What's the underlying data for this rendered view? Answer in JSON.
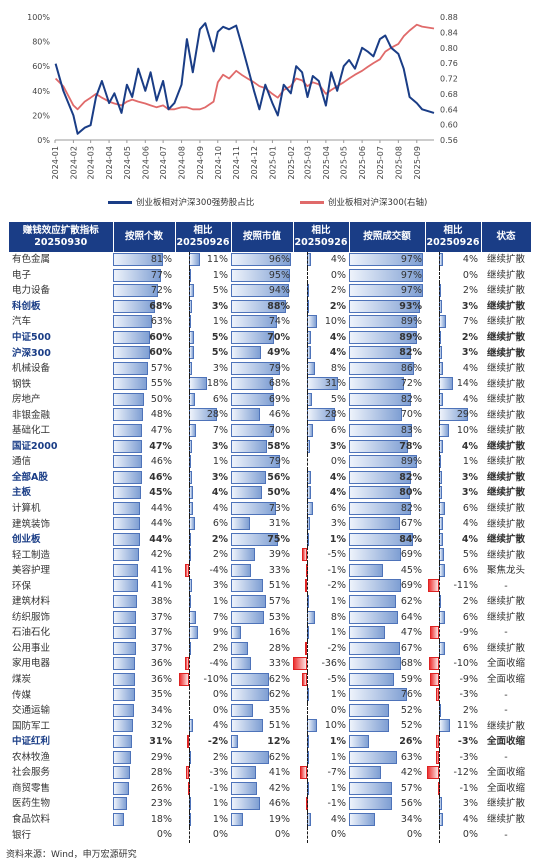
{
  "chart_data": [
    {
      "type": "line",
      "x_ticks": [
        "2024-01",
        "2024-02",
        "2024-03",
        "2024-04",
        "2024-05",
        "2024-06",
        "2024-07",
        "2024-08",
        "2024-09",
        "2024-10",
        "2024-11",
        "2024-12",
        "2025-01",
        "2025-02",
        "2025-03",
        "2025-04",
        "2025-05",
        "2025-06",
        "2025-07",
        "2025-08",
        "2025-09"
      ],
      "y_left_ticks": [
        "0%",
        "20%",
        "40%",
        "60%",
        "80%",
        "100%"
      ],
      "y_left_range": [
        0,
        100
      ],
      "y_right_ticks": [
        "0.56",
        "0.60",
        "0.64",
        "0.68",
        "0.72",
        "0.76",
        "0.80",
        "0.84",
        "0.88"
      ],
      "y_right_range": [
        0.56,
        0.88
      ],
      "series": [
        {
          "name": "创业板相对沪深300强势股占比",
          "axis": "left",
          "color": "#1a3d86",
          "x": [
            "2024-01-02",
            "2024-01-15",
            "2024-02-01",
            "2024-02-08",
            "2024-02-20",
            "2024-03-01",
            "2024-03-10",
            "2024-03-20",
            "2024-04-01",
            "2024-04-10",
            "2024-04-22",
            "2024-05-01",
            "2024-05-10",
            "2024-05-20",
            "2024-06-01",
            "2024-06-10",
            "2024-06-20",
            "2024-07-01",
            "2024-07-10",
            "2024-07-20",
            "2024-08-01",
            "2024-08-10",
            "2024-08-20",
            "2024-09-01",
            "2024-09-10",
            "2024-09-24",
            "2024-10-01",
            "2024-10-10",
            "2024-10-20",
            "2024-11-01",
            "2024-11-10",
            "2024-11-20",
            "2024-12-01",
            "2024-12-10",
            "2024-12-20",
            "2025-01-01",
            "2025-01-10",
            "2025-01-20",
            "2025-02-01",
            "2025-02-10",
            "2025-02-20",
            "2025-03-01",
            "2025-03-10",
            "2025-03-20",
            "2025-04-01",
            "2025-04-10",
            "2025-04-20",
            "2025-05-01",
            "2025-05-10",
            "2025-05-20",
            "2025-06-01",
            "2025-06-10",
            "2025-06-20",
            "2025-07-01",
            "2025-07-10",
            "2025-07-20",
            "2025-08-01",
            "2025-08-10",
            "2025-08-20",
            "2025-09-01",
            "2025-09-10",
            "2025-09-30"
          ],
          "values": [
            62,
            40,
            20,
            5,
            10,
            12,
            35,
            48,
            30,
            38,
            22,
            45,
            35,
            58,
            40,
            55,
            32,
            48,
            25,
            30,
            45,
            82,
            55,
            90,
            95,
            72,
            88,
            92,
            90,
            93,
            78,
            60,
            40,
            25,
            45,
            30,
            20,
            45,
            38,
            60,
            55,
            35,
            52,
            48,
            28,
            55,
            40,
            60,
            65,
            58,
            75,
            72,
            68,
            82,
            85,
            75,
            70,
            58,
            35,
            30,
            25,
            22
          ]
        },
        {
          "name": "创业板相对沪深300(右轴)",
          "axis": "right",
          "color": "#e06a6a",
          "x": [
            "2024-01-02",
            "2024-01-15",
            "2024-02-01",
            "2024-02-08",
            "2024-02-20",
            "2024-03-01",
            "2024-03-10",
            "2024-03-20",
            "2024-04-01",
            "2024-04-10",
            "2024-04-22",
            "2024-05-01",
            "2024-05-10",
            "2024-05-20",
            "2024-06-01",
            "2024-06-10",
            "2024-06-20",
            "2024-07-01",
            "2024-07-10",
            "2024-07-20",
            "2024-08-01",
            "2024-08-10",
            "2024-08-20",
            "2024-09-01",
            "2024-09-10",
            "2024-09-24",
            "2024-10-01",
            "2024-10-10",
            "2024-10-20",
            "2024-11-01",
            "2024-11-10",
            "2024-11-20",
            "2024-12-01",
            "2024-12-10",
            "2024-12-20",
            "2025-01-01",
            "2025-01-10",
            "2025-01-20",
            "2025-02-01",
            "2025-02-10",
            "2025-02-20",
            "2025-03-01",
            "2025-03-10",
            "2025-03-20",
            "2025-04-01",
            "2025-04-10",
            "2025-04-20",
            "2025-05-01",
            "2025-05-10",
            "2025-05-20",
            "2025-06-01",
            "2025-06-10",
            "2025-06-20",
            "2025-07-01",
            "2025-07-10",
            "2025-07-20",
            "2025-08-01",
            "2025-08-10",
            "2025-08-20",
            "2025-09-01",
            "2025-09-10",
            "2025-09-30"
          ],
          "values": [
            0.72,
            0.7,
            0.65,
            0.64,
            0.66,
            0.67,
            0.68,
            0.67,
            0.66,
            0.655,
            0.65,
            0.66,
            0.665,
            0.66,
            0.655,
            0.65,
            0.645,
            0.65,
            0.64,
            0.64,
            0.645,
            0.645,
            0.64,
            0.64,
            0.645,
            0.66,
            0.71,
            0.73,
            0.72,
            0.74,
            0.73,
            0.72,
            0.71,
            0.7,
            0.695,
            0.68,
            0.67,
            0.69,
            0.7,
            0.72,
            0.715,
            0.7,
            0.71,
            0.705,
            0.68,
            0.69,
            0.7,
            0.71,
            0.72,
            0.73,
            0.74,
            0.75,
            0.76,
            0.77,
            0.79,
            0.8,
            0.81,
            0.83,
            0.845,
            0.86,
            0.855,
            0.85
          ]
        }
      ]
    },
    {
      "type": "table",
      "columns": [
        "赚钱效应扩散指标 20250930",
        "按照个数",
        "相比 20250926",
        "按照市值",
        "相比 20250926",
        "按照成交额",
        "相比 20250926",
        "状态"
      ],
      "rows": [
        {
          "name": "有色金属",
          "bold": false,
          "c1": 81,
          "d1": 11,
          "c2": 96,
          "d2": 4,
          "c3": 97,
          "d3": 4,
          "status": "继续扩散"
        },
        {
          "name": "电子",
          "bold": false,
          "c1": 77,
          "d1": 1,
          "c2": 95,
          "d2": 0,
          "c3": 97,
          "d3": 0,
          "status": "继续扩散"
        },
        {
          "name": "电力设备",
          "bold": false,
          "c1": 72,
          "d1": 5,
          "c2": 94,
          "d2": 2,
          "c3": 97,
          "d3": 2,
          "status": "继续扩散"
        },
        {
          "name": "科创板",
          "bold": true,
          "c1": 68,
          "d1": 3,
          "c2": 88,
          "d2": 2,
          "c3": 93,
          "d3": 3,
          "status": "继续扩散"
        },
        {
          "name": "汽车",
          "bold": false,
          "c1": 63,
          "d1": 1,
          "c2": 74,
          "d2": 10,
          "c3": 89,
          "d3": 7,
          "status": "继续扩散"
        },
        {
          "name": "中证500",
          "bold": true,
          "c1": 60,
          "d1": 5,
          "c2": 70,
          "d2": 4,
          "c3": 89,
          "d3": 2,
          "status": "继续扩散"
        },
        {
          "name": "沪深300",
          "bold": true,
          "c1": 60,
          "d1": 5,
          "c2": 49,
          "d2": 4,
          "c3": 82,
          "d3": 3,
          "status": "继续扩散"
        },
        {
          "name": "机械设备",
          "bold": false,
          "c1": 57,
          "d1": 3,
          "c2": 79,
          "d2": 8,
          "c3": 86,
          "d3": 4,
          "status": "继续扩散"
        },
        {
          "name": "钢铁",
          "bold": false,
          "c1": 55,
          "d1": 18,
          "c2": 68,
          "d2": 31,
          "c3": 72,
          "d3": 14,
          "status": "继续扩散"
        },
        {
          "name": "房地产",
          "bold": false,
          "c1": 50,
          "d1": 6,
          "c2": 69,
          "d2": 5,
          "c3": 82,
          "d3": 4,
          "status": "继续扩散"
        },
        {
          "name": "非银金融",
          "bold": false,
          "c1": 48,
          "d1": 28,
          "c2": 46,
          "d2": 28,
          "c3": 70,
          "d3": 29,
          "status": "继续扩散"
        },
        {
          "name": "基础化工",
          "bold": false,
          "c1": 47,
          "d1": 7,
          "c2": 70,
          "d2": 6,
          "c3": 83,
          "d3": 10,
          "status": "继续扩散"
        },
        {
          "name": "国证2000",
          "bold": true,
          "c1": 47,
          "d1": 3,
          "c2": 58,
          "d2": 3,
          "c3": 78,
          "d3": 4,
          "status": "继续扩散"
        },
        {
          "name": "通信",
          "bold": false,
          "c1": 46,
          "d1": 1,
          "c2": 79,
          "d2": 0,
          "c3": 89,
          "d3": 1,
          "status": "继续扩散"
        },
        {
          "name": "全部A股",
          "bold": true,
          "c1": 46,
          "d1": 3,
          "c2": 56,
          "d2": 4,
          "c3": 82,
          "d3": 3,
          "status": "继续扩散"
        },
        {
          "name": "主板",
          "bold": true,
          "c1": 45,
          "d1": 4,
          "c2": 50,
          "d2": 4,
          "c3": 80,
          "d3": 3,
          "status": "继续扩散"
        },
        {
          "name": "计算机",
          "bold": false,
          "c1": 44,
          "d1": 4,
          "c2": 73,
          "d2": 6,
          "c3": 82,
          "d3": 6,
          "status": "继续扩散"
        },
        {
          "name": "建筑装饰",
          "bold": false,
          "c1": 44,
          "d1": 6,
          "c2": 31,
          "d2": 3,
          "c3": 67,
          "d3": 4,
          "status": "继续扩散"
        },
        {
          "name": "创业板",
          "bold": true,
          "c1": 44,
          "d1": 2,
          "c2": 75,
          "d2": 1,
          "c3": 84,
          "d3": 4,
          "status": "继续扩散"
        },
        {
          "name": "轻工制造",
          "bold": false,
          "c1": 42,
          "d1": 2,
          "c2": 39,
          "d2": -5,
          "c3": 69,
          "d3": 5,
          "status": "继续扩散"
        },
        {
          "name": "美容护理",
          "bold": false,
          "c1": 41,
          "d1": -4,
          "c2": 33,
          "d2": -1,
          "c3": 45,
          "d3": 6,
          "status": "聚焦龙头"
        },
        {
          "name": "环保",
          "bold": false,
          "c1": 41,
          "d1": 3,
          "c2": 51,
          "d2": -2,
          "c3": 69,
          "d3": -11,
          "status": "-"
        },
        {
          "name": "建筑材料",
          "bold": false,
          "c1": 38,
          "d1": 1,
          "c2": 57,
          "d2": 1,
          "c3": 62,
          "d3": 2,
          "status": "继续扩散"
        },
        {
          "name": "纺织服饰",
          "bold": false,
          "c1": 37,
          "d1": 7,
          "c2": 53,
          "d2": 8,
          "c3": 64,
          "d3": 6,
          "status": "继续扩散"
        },
        {
          "name": "石油石化",
          "bold": false,
          "c1": 37,
          "d1": 9,
          "c2": 16,
          "d2": 1,
          "c3": 47,
          "d3": -9,
          "status": "-"
        },
        {
          "name": "公用事业",
          "bold": false,
          "c1": 37,
          "d1": 2,
          "c2": 28,
          "d2": -2,
          "c3": 67,
          "d3": 6,
          "status": "继续扩散"
        },
        {
          "name": "家用电器",
          "bold": false,
          "c1": 36,
          "d1": -4,
          "c2": 33,
          "d2": -36,
          "c3": 68,
          "d3": -10,
          "status": "全面收缩"
        },
        {
          "name": "煤炭",
          "bold": false,
          "c1": 36,
          "d1": -10,
          "c2": 62,
          "d2": -5,
          "c3": 59,
          "d3": -9,
          "status": "全面收缩"
        },
        {
          "name": "传媒",
          "bold": false,
          "c1": 35,
          "d1": 0,
          "c2": 62,
          "d2": 1,
          "c3": 76,
          "d3": -3,
          "status": "-"
        },
        {
          "name": "交通运输",
          "bold": false,
          "c1": 34,
          "d1": 0,
          "c2": 35,
          "d2": 0,
          "c3": 52,
          "d3": 2,
          "status": "-"
        },
        {
          "name": "国防军工",
          "bold": false,
          "c1": 32,
          "d1": 4,
          "c2": 51,
          "d2": 10,
          "c3": 52,
          "d3": 11,
          "status": "继续扩散"
        },
        {
          "name": "中证红利",
          "bold": true,
          "c1": 31,
          "d1": -2,
          "c2": 12,
          "d2": 1,
          "c3": 26,
          "d3": -3,
          "status": "全面收缩"
        },
        {
          "name": "农林牧渔",
          "bold": false,
          "c1": 29,
          "d1": 2,
          "c2": 62,
          "d2": 1,
          "c3": 63,
          "d3": -3,
          "status": "-"
        },
        {
          "name": "社会服务",
          "bold": false,
          "c1": 28,
          "d1": -3,
          "c2": 41,
          "d2": -7,
          "c3": 42,
          "d3": -12,
          "status": "全面收缩"
        },
        {
          "name": "商贸零售",
          "bold": false,
          "c1": 26,
          "d1": -1,
          "c2": 42,
          "d2": 1,
          "c3": 57,
          "d3": -1,
          "status": "全面收缩"
        },
        {
          "name": "医药生物",
          "bold": false,
          "c1": 23,
          "d1": 1,
          "c2": 46,
          "d2": -1,
          "c3": 56,
          "d3": 3,
          "status": "继续扩散"
        },
        {
          "name": "食品饮料",
          "bold": false,
          "c1": 18,
          "d1": 1,
          "c2": 19,
          "d2": 4,
          "c3": 34,
          "d3": 4,
          "status": "继续扩散"
        },
        {
          "name": "银行",
          "bold": false,
          "c1": 0,
          "d1": 0,
          "c2": 0,
          "d2": 0,
          "c3": 0,
          "d3": 0,
          "status": "-"
        }
      ]
    }
  ],
  "table_header": {
    "col0": "赚钱效应扩散指标\n20250930",
    "col1": "按照个数",
    "col2": "相比\n20250926",
    "col3": "按照市值",
    "col4": "相比\n20250926",
    "col5": "按照成交额",
    "col6": "相比\n20250926",
    "col7": "状态"
  },
  "source": "资料来源：Wind，申万宏源研究",
  "colors": {
    "navy": "#1a3d86",
    "red_line": "#e06a6a",
    "bar_blue": "#7f9fd3",
    "bar_red": "#ee3333"
  }
}
